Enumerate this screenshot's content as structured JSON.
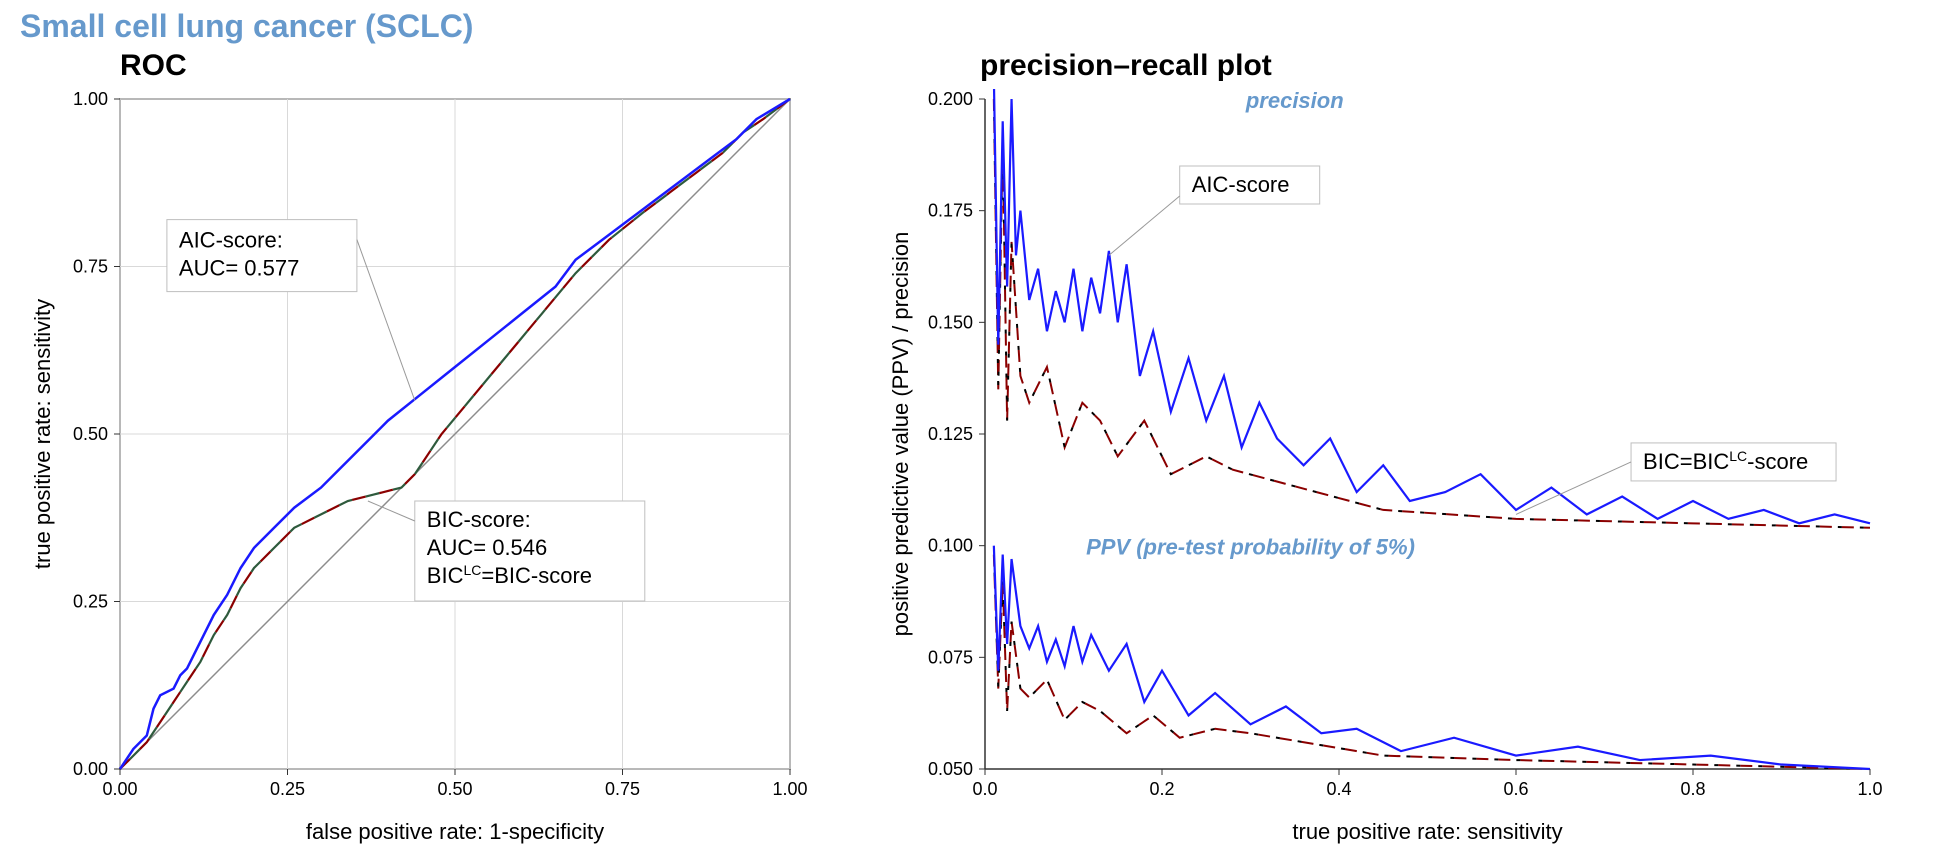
{
  "page_title": "Small cell lung cancer (SCLC)",
  "colors": {
    "title": "#6699cc",
    "aic_line": "#1a1aff",
    "bic_line_a": "#8b0000",
    "bic_line_b": "#2e5a3c",
    "diagonal": "#8c8c8c",
    "grid": "#d9d9d9",
    "axis": "#333333",
    "background": "#ffffff",
    "label_text": "#6699cc"
  },
  "roc": {
    "title": "ROC",
    "xlabel": "false positive rate: 1-specificity",
    "ylabel": "true positive rate: sensitivity",
    "xlim": [
      0,
      1
    ],
    "ylim": [
      0,
      1
    ],
    "xticks": [
      0.0,
      0.25,
      0.5,
      0.75,
      1.0
    ],
    "yticks": [
      0.0,
      0.25,
      0.5,
      0.75,
      1.0
    ],
    "aic_auc_label1": "AIC-score:",
    "aic_auc_label2": "AUC= 0.577",
    "bic_auc_label1": "BIC-score:",
    "bic_auc_label2": "AUC= 0.546",
    "bic_auc_label3": "BIC",
    "bic_auc_label3_sup": "LC",
    "bic_auc_label3_rest": "=BIC-score",
    "aic_series": [
      [
        0.0,
        0.0
      ],
      [
        0.02,
        0.03
      ],
      [
        0.04,
        0.05
      ],
      [
        0.05,
        0.09
      ],
      [
        0.06,
        0.11
      ],
      [
        0.08,
        0.12
      ],
      [
        0.09,
        0.14
      ],
      [
        0.1,
        0.15
      ],
      [
        0.12,
        0.19
      ],
      [
        0.14,
        0.23
      ],
      [
        0.16,
        0.26
      ],
      [
        0.18,
        0.3
      ],
      [
        0.2,
        0.33
      ],
      [
        0.23,
        0.36
      ],
      [
        0.26,
        0.39
      ],
      [
        0.3,
        0.42
      ],
      [
        0.33,
        0.45
      ],
      [
        0.37,
        0.49
      ],
      [
        0.4,
        0.52
      ],
      [
        0.45,
        0.56
      ],
      [
        0.5,
        0.6
      ],
      [
        0.55,
        0.64
      ],
      [
        0.6,
        0.68
      ],
      [
        0.65,
        0.72
      ],
      [
        0.68,
        0.76
      ],
      [
        0.72,
        0.79
      ],
      [
        0.76,
        0.82
      ],
      [
        0.8,
        0.85
      ],
      [
        0.84,
        0.88
      ],
      [
        0.88,
        0.91
      ],
      [
        0.92,
        0.94
      ],
      [
        0.95,
        0.97
      ],
      [
        1.0,
        1.0
      ]
    ],
    "bic_series": [
      [
        0.0,
        0.0
      ],
      [
        0.02,
        0.02
      ],
      [
        0.04,
        0.04
      ],
      [
        0.06,
        0.07
      ],
      [
        0.08,
        0.1
      ],
      [
        0.1,
        0.13
      ],
      [
        0.12,
        0.16
      ],
      [
        0.14,
        0.2
      ],
      [
        0.16,
        0.23
      ],
      [
        0.18,
        0.27
      ],
      [
        0.2,
        0.3
      ],
      [
        0.23,
        0.33
      ],
      [
        0.26,
        0.36
      ],
      [
        0.3,
        0.38
      ],
      [
        0.34,
        0.4
      ],
      [
        0.38,
        0.41
      ],
      [
        0.42,
        0.42
      ],
      [
        0.44,
        0.44
      ],
      [
        0.48,
        0.5
      ],
      [
        0.53,
        0.56
      ],
      [
        0.58,
        0.62
      ],
      [
        0.63,
        0.68
      ],
      [
        0.68,
        0.74
      ],
      [
        0.73,
        0.79
      ],
      [
        0.78,
        0.83
      ],
      [
        0.82,
        0.86
      ],
      [
        0.86,
        0.89
      ],
      [
        0.9,
        0.92
      ],
      [
        0.93,
        0.95
      ],
      [
        0.96,
        0.97
      ],
      [
        1.0,
        1.0
      ]
    ]
  },
  "pr": {
    "title": "precision–recall plot",
    "xlabel": "true positive rate: sensitivity",
    "ylabel": "positive predictive value  (PPV) / precision",
    "xlim": [
      0,
      1
    ],
    "ylim": [
      0.05,
      0.2
    ],
    "xticks": [
      0.0,
      0.2,
      0.4,
      0.6,
      0.8,
      1.0
    ],
    "yticks": [
      0.05,
      0.075,
      0.1,
      0.125,
      0.15,
      0.175,
      0.2
    ],
    "precision_label": "precision",
    "ppv_label": "PPV (pre-test probability of 5%)",
    "aic_anno": "AIC-score",
    "bic_anno_pre": "BIC=BIC",
    "bic_anno_sup": "LC",
    "bic_anno_post": "-score",
    "aic_top": [
      [
        0.01,
        0.205
      ],
      [
        0.015,
        0.145
      ],
      [
        0.02,
        0.195
      ],
      [
        0.025,
        0.158
      ],
      [
        0.03,
        0.2
      ],
      [
        0.035,
        0.165
      ],
      [
        0.04,
        0.175
      ],
      [
        0.05,
        0.155
      ],
      [
        0.06,
        0.162
      ],
      [
        0.07,
        0.148
      ],
      [
        0.08,
        0.157
      ],
      [
        0.09,
        0.15
      ],
      [
        0.1,
        0.162
      ],
      [
        0.11,
        0.148
      ],
      [
        0.12,
        0.16
      ],
      [
        0.13,
        0.152
      ],
      [
        0.14,
        0.166
      ],
      [
        0.15,
        0.15
      ],
      [
        0.16,
        0.163
      ],
      [
        0.175,
        0.138
      ],
      [
        0.19,
        0.148
      ],
      [
        0.21,
        0.13
      ],
      [
        0.23,
        0.142
      ],
      [
        0.25,
        0.128
      ],
      [
        0.27,
        0.138
      ],
      [
        0.29,
        0.122
      ],
      [
        0.31,
        0.132
      ],
      [
        0.33,
        0.124
      ],
      [
        0.36,
        0.118
      ],
      [
        0.39,
        0.124
      ],
      [
        0.42,
        0.112
      ],
      [
        0.45,
        0.118
      ],
      [
        0.48,
        0.11
      ],
      [
        0.52,
        0.112
      ],
      [
        0.56,
        0.116
      ],
      [
        0.6,
        0.108
      ],
      [
        0.64,
        0.113
      ],
      [
        0.68,
        0.107
      ],
      [
        0.72,
        0.111
      ],
      [
        0.76,
        0.106
      ],
      [
        0.8,
        0.11
      ],
      [
        0.84,
        0.106
      ],
      [
        0.88,
        0.108
      ],
      [
        0.92,
        0.105
      ],
      [
        0.96,
        0.107
      ],
      [
        1.0,
        0.105
      ]
    ],
    "bic_top": [
      [
        0.01,
        0.2
      ],
      [
        0.015,
        0.135
      ],
      [
        0.02,
        0.19
      ],
      [
        0.025,
        0.128
      ],
      [
        0.03,
        0.168
      ],
      [
        0.04,
        0.138
      ],
      [
        0.05,
        0.132
      ],
      [
        0.07,
        0.14
      ],
      [
        0.09,
        0.122
      ],
      [
        0.11,
        0.132
      ],
      [
        0.13,
        0.128
      ],
      [
        0.15,
        0.12
      ],
      [
        0.18,
        0.128
      ],
      [
        0.21,
        0.116
      ],
      [
        0.25,
        0.12
      ],
      [
        0.28,
        0.117
      ],
      [
        0.45,
        0.108
      ],
      [
        0.6,
        0.106
      ],
      [
        0.8,
        0.105
      ],
      [
        1.0,
        0.104
      ]
    ],
    "aic_bot": [
      [
        0.01,
        0.1
      ],
      [
        0.015,
        0.072
      ],
      [
        0.02,
        0.098
      ],
      [
        0.025,
        0.078
      ],
      [
        0.03,
        0.097
      ],
      [
        0.04,
        0.082
      ],
      [
        0.05,
        0.077
      ],
      [
        0.06,
        0.082
      ],
      [
        0.07,
        0.074
      ],
      [
        0.08,
        0.079
      ],
      [
        0.09,
        0.073
      ],
      [
        0.1,
        0.082
      ],
      [
        0.11,
        0.074
      ],
      [
        0.12,
        0.08
      ],
      [
        0.14,
        0.072
      ],
      [
        0.16,
        0.078
      ],
      [
        0.18,
        0.065
      ],
      [
        0.2,
        0.072
      ],
      [
        0.23,
        0.062
      ],
      [
        0.26,
        0.067
      ],
      [
        0.3,
        0.06
      ],
      [
        0.34,
        0.064
      ],
      [
        0.38,
        0.058
      ],
      [
        0.42,
        0.059
      ],
      [
        0.47,
        0.054
      ],
      [
        0.53,
        0.057
      ],
      [
        0.6,
        0.053
      ],
      [
        0.67,
        0.055
      ],
      [
        0.74,
        0.052
      ],
      [
        0.82,
        0.053
      ],
      [
        0.9,
        0.051
      ],
      [
        1.0,
        0.05
      ]
    ],
    "bic_bot": [
      [
        0.01,
        0.098
      ],
      [
        0.015,
        0.068
      ],
      [
        0.02,
        0.092
      ],
      [
        0.025,
        0.063
      ],
      [
        0.03,
        0.083
      ],
      [
        0.04,
        0.068
      ],
      [
        0.05,
        0.066
      ],
      [
        0.07,
        0.07
      ],
      [
        0.09,
        0.061
      ],
      [
        0.11,
        0.065
      ],
      [
        0.13,
        0.063
      ],
      [
        0.16,
        0.058
      ],
      [
        0.19,
        0.062
      ],
      [
        0.22,
        0.057
      ],
      [
        0.26,
        0.059
      ],
      [
        0.3,
        0.058
      ],
      [
        0.45,
        0.053
      ],
      [
        0.6,
        0.052
      ],
      [
        0.8,
        0.051
      ],
      [
        1.0,
        0.05
      ]
    ]
  }
}
